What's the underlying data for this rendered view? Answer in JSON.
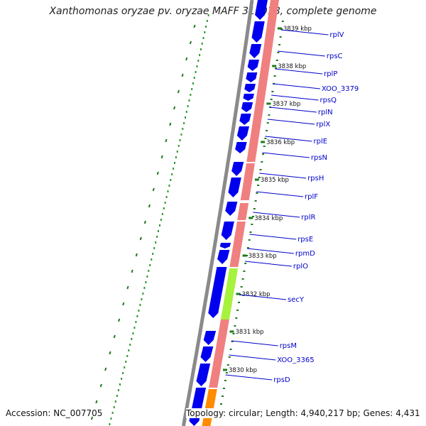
{
  "title": "Xanthomonas oryzae pv. oryzae MAFF 311018, complete genome",
  "accession_text": "Accession: NC_007705",
  "topology_text": "Topology: circular; Length: 4,940,217 bp; Genes: 4,431",
  "colors": {
    "backbone": "#8a8a8a",
    "ruler_major": "#1e7a1e",
    "ruler_minor": "#1e7a1e",
    "gc_dots": "#2e9a2e",
    "cds_forward": "#0000ee",
    "rna_track": "#f08080",
    "secY_highlight": "#a6f23c",
    "orange_feature": "#ff8c00",
    "label_line": "#0000cc",
    "label_text": "#0000cc",
    "kbp_text": "#111111"
  },
  "kbp_markers": [
    "3839 kbp",
    "3838 kbp",
    "3837 kbp",
    "3836 kbp",
    "3835 kbp",
    "3834 kbp",
    "3833 kbp",
    "3832 kbp",
    "3831 kbp",
    "3830 kbp"
  ],
  "genes": [
    "rplV",
    "rpsC",
    "rplP",
    "XOO_3379",
    "rpsQ",
    "rplN",
    "rplX",
    "rplE",
    "rpsN",
    "rpsH",
    "rplF",
    "rplR",
    "rpsE",
    "rpmD",
    "rplO",
    "secY",
    "rpsM",
    "XOO_3365",
    "rpsD"
  ]
}
